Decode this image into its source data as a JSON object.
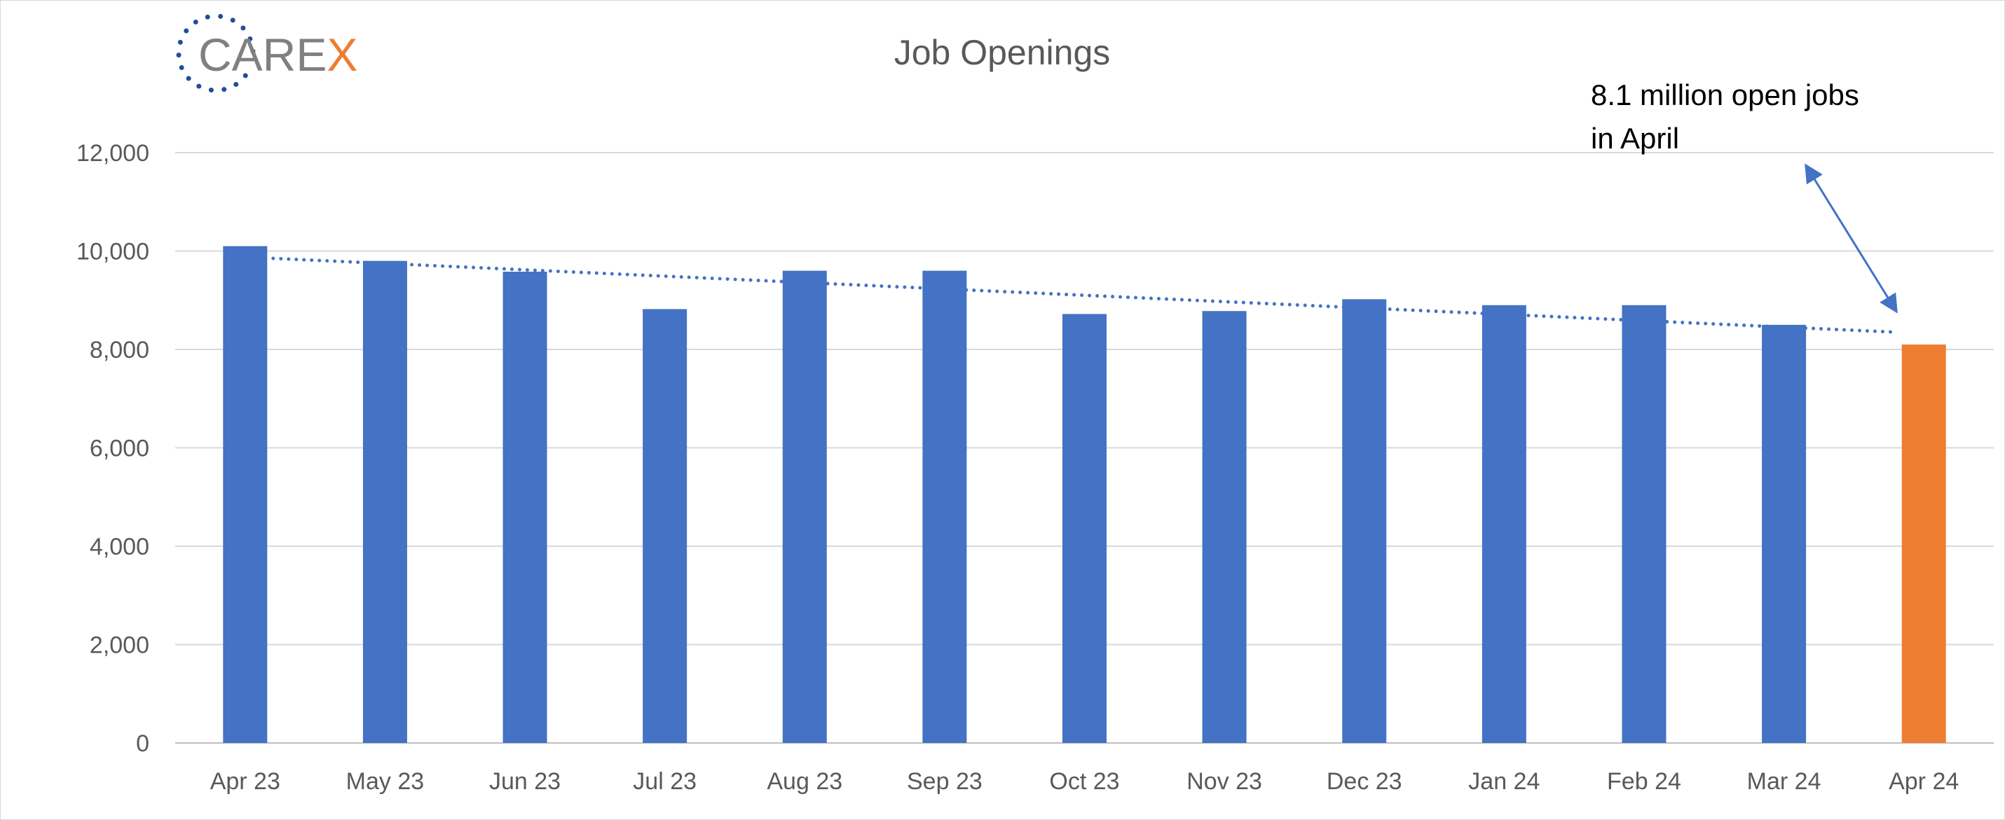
{
  "logo": {
    "text_main": "CARE",
    "text_accent": "X",
    "main_color": "#808080",
    "accent_color": "#ed7d31",
    "dot_color": "#1f4e9c"
  },
  "chart_data": {
    "type": "bar",
    "title": "Job Openings",
    "xlabel": "",
    "ylabel": "",
    "categories": [
      "Apr 23",
      "May 23",
      "Jun 23",
      "Jul 23",
      "Aug 23",
      "Sep 23",
      "Oct 23",
      "Nov 23",
      "Dec 23",
      "Jan 24",
      "Feb 24",
      "Mar 24",
      "Apr 24"
    ],
    "values": [
      10100,
      9800,
      9580,
      8820,
      9600,
      9600,
      8720,
      8780,
      9020,
      8900,
      8900,
      8500,
      8100
    ],
    "ylim": [
      0,
      12000
    ],
    "yticks": [
      0,
      2000,
      4000,
      6000,
      8000,
      10000,
      12000
    ],
    "ytick_labels": [
      "0",
      "2,000",
      "4,000",
      "6,000",
      "8,000",
      "10,000",
      "12,000"
    ],
    "grid": true,
    "legend": "none",
    "bar_color": "#4472c4",
    "highlight_index": 12,
    "highlight_color": "#ed7d31",
    "trendline": {
      "style": "dotted",
      "color": "#4472c4",
      "start_value": 9850,
      "end_value": 8350
    },
    "annotation": {
      "lines": [
        "8.1 million open jobs",
        "in April"
      ],
      "arrow_color": "#4472c4"
    }
  }
}
